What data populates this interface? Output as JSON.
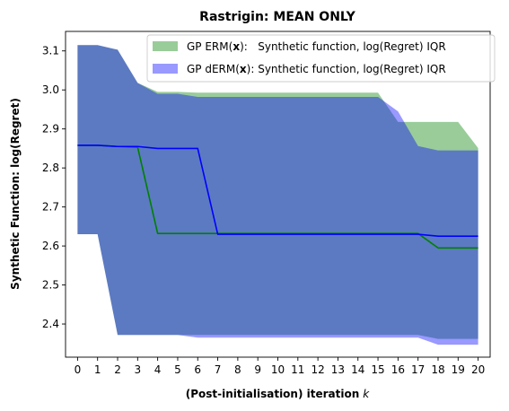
{
  "chart_data": {
    "type": "line",
    "title": "Rastrigin: MEAN ONLY",
    "xlabel": "(Post-initialisation) iteration",
    "xlabel_var": "k",
    "ylabel": "Synthetic Function: log(Regret)",
    "xlim": [
      -0.6,
      20.6
    ],
    "ylim": [
      2.315,
      3.15
    ],
    "x_ticks": [
      0,
      1,
      2,
      3,
      4,
      5,
      6,
      7,
      8,
      9,
      10,
      11,
      12,
      13,
      14,
      15,
      16,
      17,
      18,
      19,
      20
    ],
    "y_ticks": [
      2.4,
      2.5,
      2.6,
      2.7,
      2.8,
      2.9,
      3.0,
      3.1
    ],
    "y_tick_labels": [
      "2.4",
      "2.5",
      "2.6",
      "2.7",
      "2.8",
      "2.9",
      "3.0",
      "3.1"
    ],
    "grid": false,
    "legend_placement": "upper-right",
    "x": [
      0,
      1,
      2,
      3,
      4,
      5,
      6,
      7,
      8,
      9,
      10,
      11,
      12,
      13,
      14,
      15,
      16,
      17,
      18,
      19,
      20
    ],
    "series": [
      {
        "legend_prefix": "GP ERM(",
        "legend_var": "x",
        "legend_suffix": "):   Synthetic function, log(Regret) IQR",
        "color": "#008000",
        "fill_color": "#008000",
        "fill_opacity": 0.4,
        "mean": [
          2.858,
          2.858,
          2.855,
          2.853,
          2.632,
          2.632,
          2.632,
          2.632,
          2.632,
          2.632,
          2.632,
          2.632,
          2.632,
          2.632,
          2.632,
          2.632,
          2.632,
          2.632,
          2.595,
          2.595,
          2.595
        ],
        "upper": [
          3.115,
          3.115,
          3.103,
          3.018,
          2.995,
          2.995,
          2.993,
          2.993,
          2.993,
          2.993,
          2.993,
          2.993,
          2.993,
          2.993,
          2.993,
          2.993,
          2.918,
          2.918,
          2.918,
          2.918,
          2.851
        ],
        "lower": [
          2.63,
          2.63,
          2.372,
          2.372,
          2.372,
          2.372,
          2.372,
          2.372,
          2.372,
          2.372,
          2.372,
          2.372,
          2.372,
          2.372,
          2.372,
          2.372,
          2.372,
          2.372,
          2.362,
          2.362,
          2.362
        ]
      },
      {
        "legend_prefix": "GP dERM(",
        "legend_var": "x",
        "legend_suffix": "): Synthetic function, log(Regret) IQR",
        "color": "#0000ff",
        "fill_color": "#0000ff",
        "fill_opacity": 0.4,
        "mean": [
          2.858,
          2.858,
          2.855,
          2.855,
          2.85,
          2.85,
          2.85,
          2.63,
          2.63,
          2.63,
          2.63,
          2.63,
          2.63,
          2.63,
          2.63,
          2.63,
          2.63,
          2.63,
          2.625,
          2.625,
          2.625
        ],
        "upper": [
          3.115,
          3.115,
          3.103,
          3.018,
          2.99,
          2.99,
          2.982,
          2.982,
          2.982,
          2.982,
          2.982,
          2.982,
          2.982,
          2.982,
          2.982,
          2.982,
          2.945,
          2.856,
          2.845,
          2.845,
          2.845
        ],
        "lower": [
          2.63,
          2.63,
          2.372,
          2.372,
          2.372,
          2.372,
          2.365,
          2.365,
          2.365,
          2.365,
          2.365,
          2.365,
          2.365,
          2.365,
          2.365,
          2.365,
          2.365,
          2.365,
          2.347,
          2.347,
          2.347
        ]
      }
    ]
  }
}
